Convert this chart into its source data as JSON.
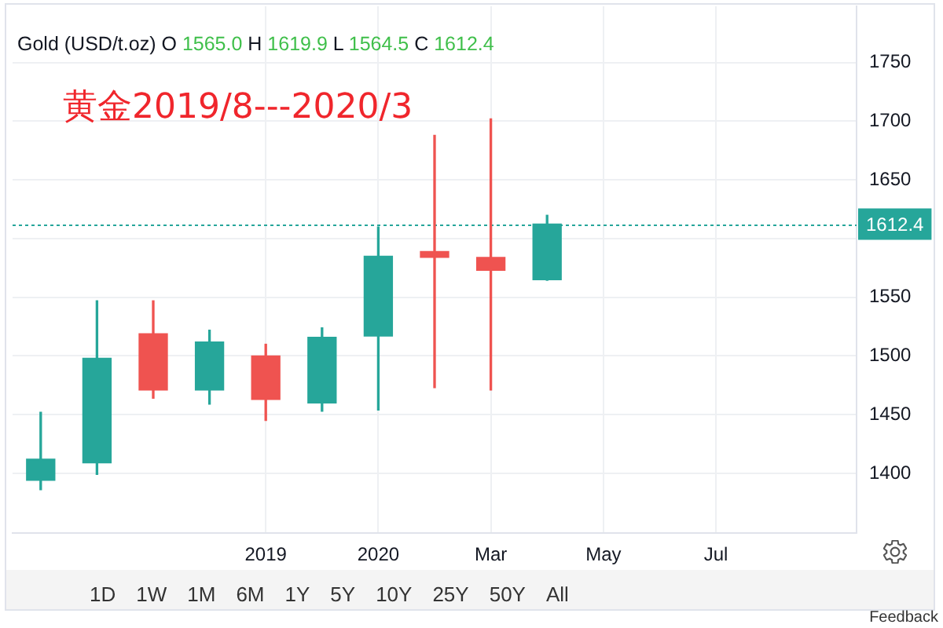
{
  "chart_data": {
    "type": "candlestick",
    "title": "Gold (USD/t.oz) O 1565.0 H 1619.9 L 1564.5 C 1612.4",
    "subtitle": "黄金2019/8---2020/3",
    "categories": [
      null,
      null,
      null,
      null,
      "2019",
      null,
      "2020",
      null,
      "Mar",
      null,
      "May",
      null,
      "Jul",
      null,
      null
    ],
    "ohlc": [
      [
        1394,
        1452,
        1386,
        1412
      ],
      [
        1409,
        1547,
        1399,
        1498
      ],
      [
        1519,
        1547,
        1464,
        1471
      ],
      [
        1471,
        1522,
        1459,
        1512
      ],
      [
        1500,
        1510,
        1445,
        1463
      ],
      [
        1460,
        1524,
        1453,
        1516
      ],
      [
        1517,
        1610,
        1454,
        1585
      ],
      [
        1589,
        1688,
        1473,
        1584
      ],
      [
        1584,
        1702,
        1471,
        1573
      ],
      [
        1565.0,
        1619.9,
        1564.5,
        1612.4
      ],
      null,
      null,
      null,
      null,
      null
    ],
    "colors": [
      "#26a69a",
      "#26a69a",
      "#ef5350",
      "#26a69a",
      "#ef5350",
      "#26a69a",
      "#26a69a",
      "#ef5350",
      "#ef5350",
      "#26a69a",
      null,
      null,
      null,
      null,
      null
    ],
    "ylim": [
      1349,
      1798
    ],
    "yticks": [
      1400,
      1450,
      1500,
      1550,
      {
        "value": 1600,
        "label": null
      },
      1650,
      1700,
      1750
    ],
    "grid": true,
    "ref_lines": [
      {
        "axis": "y",
        "value": 1612.4,
        "label": "1612.4",
        "color": "#26a69a",
        "line_style": "dotted"
      }
    ],
    "annotations": [
      "1D",
      "1W",
      "1M",
      "6M",
      "1Y",
      "5Y",
      "10Y",
      "25Y",
      "50Y",
      "All",
      "Feedback"
    ]
  }
}
